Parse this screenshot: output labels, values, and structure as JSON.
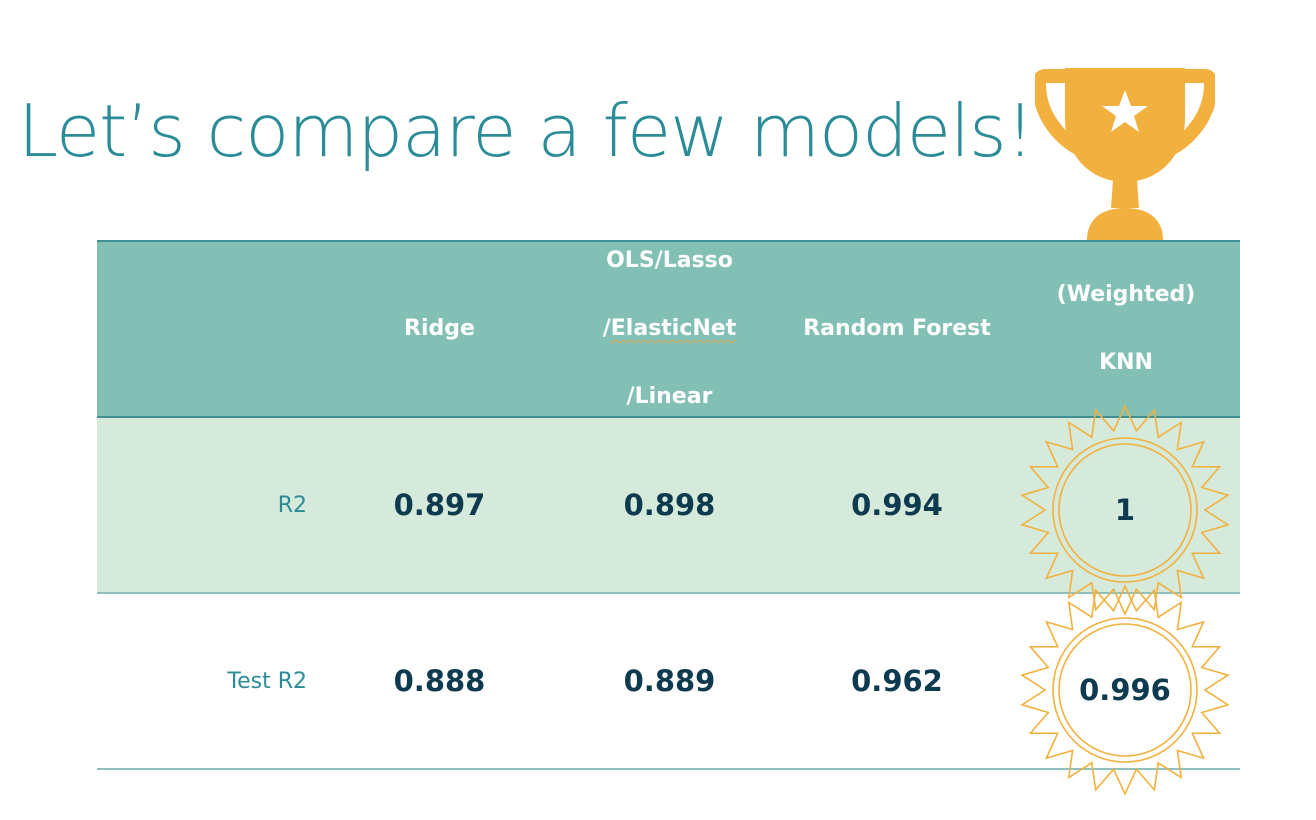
{
  "title": "Let’s compare a few models!",
  "icons": {
    "trophy": "trophy-icon",
    "badge": "award-seal-icon"
  },
  "colors": {
    "title": "#2b8c98",
    "header_bg": "#82bfb5",
    "highlight_row_bg": "#d5eadb",
    "value_text": "#0d3a4f",
    "trophy": "#f2b13e",
    "badge_stroke": "#f2b13e"
  },
  "table": {
    "columns": [
      "",
      "Ridge",
      "OLS/Lasso\n/ElasticNet\n/Linear",
      "Random Forest",
      "(Weighted)\nKNN"
    ],
    "header": {
      "ridge": "Ridge",
      "ols_line1": "OLS/Lasso",
      "ols_line2_prefix": "/",
      "ols_line2_word": "ElasticNet",
      "ols_line3": "/Linear",
      "random_forest": "Random Forest",
      "knn_line1": "(Weighted)",
      "knn_line2": "KNN"
    },
    "rows": [
      {
        "label": "R2",
        "values": [
          "0.897",
          "0.898",
          "0.994",
          "1"
        ]
      },
      {
        "label": "Test R2",
        "values": [
          "0.888",
          "0.889",
          "0.962",
          "0.996"
        ]
      }
    ]
  }
}
